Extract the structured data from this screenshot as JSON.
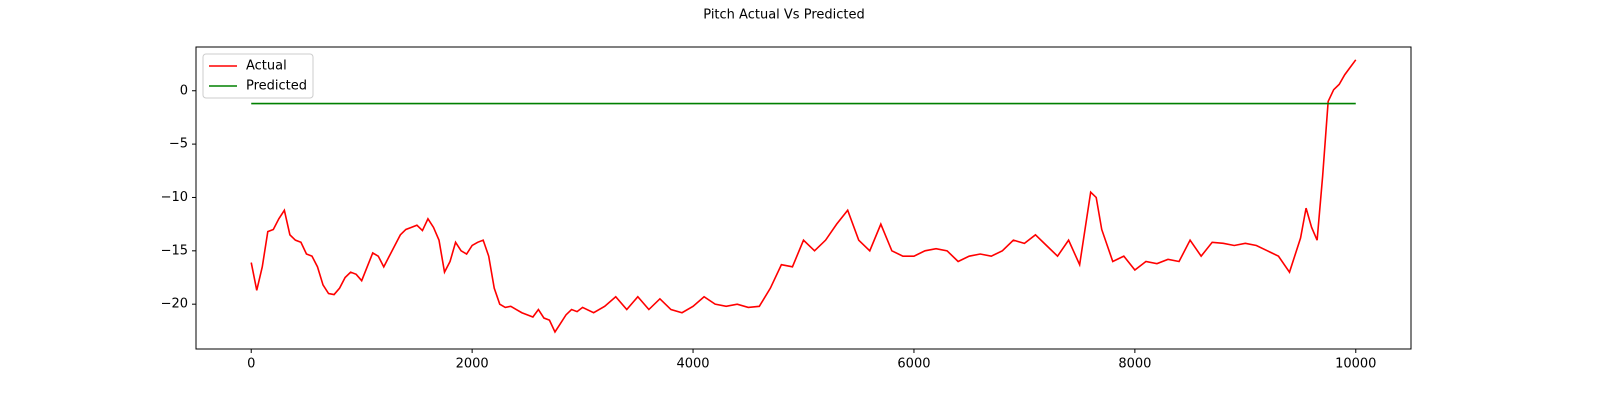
{
  "chart_data": {
    "type": "line",
    "title": "Pitch Actual Vs Predicted",
    "xlim": [
      -500,
      10500
    ],
    "xticks": [
      0,
      2000,
      4000,
      6000,
      8000,
      10000
    ],
    "ylim": [
      -24.2,
      4.1
    ],
    "yticks": [
      {
        "value": -20,
        "label": "−20"
      },
      {
        "value": -15,
        "label": "−15"
      },
      {
        "value": -10,
        "label": "−10"
      },
      {
        "value": -5,
        "label": "−5"
      },
      0
    ],
    "legend": "upper left",
    "grid": false,
    "series": [
      {
        "name": "Actual",
        "color": "#ff0000",
        "x": [
          0,
          50,
          100,
          150,
          200,
          250,
          300,
          350,
          400,
          450,
          500,
          550,
          600,
          650,
          700,
          750,
          800,
          850,
          900,
          950,
          1000,
          1050,
          1100,
          1150,
          1200,
          1250,
          1300,
          1350,
          1400,
          1450,
          1500,
          1550,
          1600,
          1650,
          1700,
          1750,
          1800,
          1850,
          1900,
          1950,
          2000,
          2050,
          2100,
          2150,
          2200,
          2250,
          2300,
          2350,
          2400,
          2450,
          2500,
          2550,
          2600,
          2650,
          2700,
          2750,
          2800,
          2850,
          2900,
          2950,
          3000,
          3100,
          3200,
          3300,
          3400,
          3500,
          3600,
          3700,
          3800,
          3900,
          4000,
          4100,
          4200,
          4300,
          4400,
          4500,
          4600,
          4700,
          4800,
          4900,
          5000,
          5100,
          5200,
          5300,
          5400,
          5500,
          5600,
          5700,
          5800,
          5900,
          6000,
          6100,
          6200,
          6300,
          6400,
          6500,
          6600,
          6700,
          6800,
          6900,
          7000,
          7100,
          7200,
          7300,
          7400,
          7500,
          7600,
          7650,
          7700,
          7800,
          7900,
          8000,
          8100,
          8200,
          8300,
          8400,
          8500,
          8600,
          8700,
          8800,
          8900,
          9000,
          9100,
          9200,
          9300,
          9400,
          9500,
          9550,
          9600,
          9650,
          9700,
          9750,
          9800,
          9850,
          9900,
          9950,
          10000
        ],
        "values": [
          -16.1,
          -18.7,
          -16.5,
          -13.2,
          -13,
          -12,
          -11.2,
          -13.5,
          -14,
          -14.2,
          -15.3,
          -15.5,
          -16.5,
          -18.2,
          -19,
          -19.1,
          -18.5,
          -17.5,
          -17,
          -17.2,
          -17.8,
          -16.5,
          -15.2,
          -15.5,
          -16.5,
          -15.5,
          -14.5,
          -13.5,
          -13,
          -12.8,
          -12.6,
          -13.1,
          -12,
          -12.8,
          -14,
          -17,
          -16,
          -14.2,
          -15,
          -15.3,
          -14.5,
          -14.2,
          -14,
          -15.5,
          -18.5,
          -20,
          -20.3,
          -20.2,
          -20.5,
          -20.8,
          -21,
          -21.2,
          -20.5,
          -21.3,
          -21.5,
          -22.6,
          -21.8,
          -21,
          -20.5,
          -20.7,
          -20.3,
          -20.8,
          -20.2,
          -19.3,
          -20.5,
          -19.3,
          -20.5,
          -19.5,
          -20.5,
          -20.8,
          -20.2,
          -19.3,
          -20,
          -20.2,
          -20,
          -20.3,
          -20.2,
          -18.5,
          -16.3,
          -16.5,
          -14,
          -15,
          -14,
          -12.5,
          -11.2,
          -14,
          -15,
          -12.5,
          -15,
          -15.5,
          -15.5,
          -15,
          -14.8,
          -15,
          -16,
          -15.5,
          -15.3,
          -15.5,
          -15,
          -14,
          -14.3,
          -13.5,
          -14.5,
          -15.5,
          -14,
          -16.3,
          -9.5,
          -10,
          -13,
          -16,
          -15.5,
          -16.8,
          -16,
          -16.2,
          -15.8,
          -16,
          -14,
          -15.5,
          -14.2,
          -14.3,
          -14.5,
          -14.3,
          -14.5,
          -15,
          -15.5,
          -17,
          -13.8,
          -11,
          -12.8,
          -14,
          -8,
          -1,
          0.1,
          0.6,
          1.5,
          2.2,
          2.9
        ]
      },
      {
        "name": "Predicted",
        "color": "#008000",
        "x": [
          0,
          10000
        ],
        "values": [
          -1.2,
          -1.2
        ]
      }
    ]
  }
}
